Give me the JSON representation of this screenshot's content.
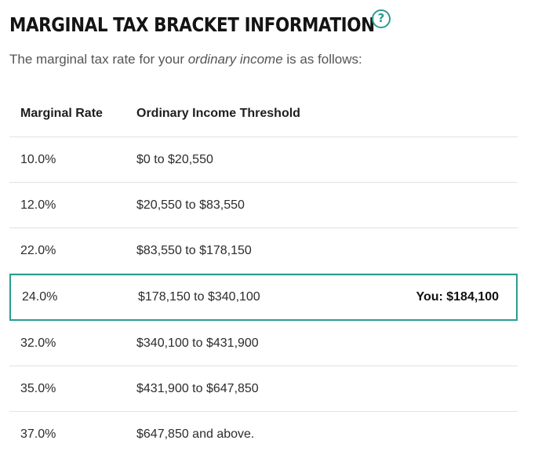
{
  "header": {
    "title": "MARGINAL TAX BRACKET INFORMATION",
    "help_icon": "?"
  },
  "subtitle": {
    "prefix": "The marginal tax rate for your ",
    "emphasis": "ordinary income",
    "suffix": " is as follows:"
  },
  "table": {
    "headers": {
      "rate": "Marginal Rate",
      "threshold": "Ordinary Income Threshold"
    },
    "rows": [
      {
        "rate": "10.0%",
        "threshold": "$0 to $20,550"
      },
      {
        "rate": "12.0%",
        "threshold": "$20,550 to $83,550"
      },
      {
        "rate": "22.0%",
        "threshold": "$83,550 to $178,150"
      },
      {
        "rate": "24.0%",
        "threshold": "$178,150 to $340,100",
        "you": "You: $184,100"
      },
      {
        "rate": "32.0%",
        "threshold": "$340,100 to $431,900"
      },
      {
        "rate": "35.0%",
        "threshold": "$431,900 to $647,850"
      },
      {
        "rate": "37.0%",
        "threshold": "$647,850 and above."
      }
    ]
  },
  "colors": {
    "accent": "#2a9d8f"
  }
}
